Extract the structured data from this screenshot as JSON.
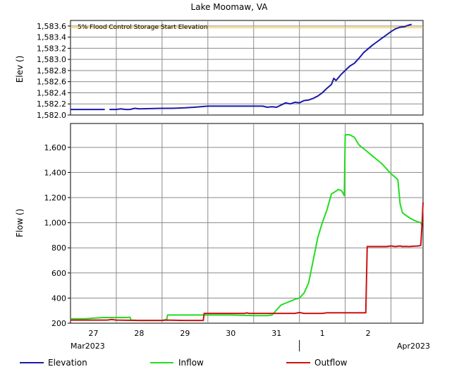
{
  "title": "Lake Moomaw, VA",
  "colors": {
    "elevation": "#1a1aaa",
    "inflow": "#22dd22",
    "outflow": "#cc1111",
    "flood_line": "#ffcc33",
    "grid": "#8a8a8a"
  },
  "chart_data": [
    {
      "type": "line",
      "panel": "elevation",
      "ylabel": "Elev ()",
      "ylim": [
        1582.0,
        1583.7
      ],
      "yticks": [
        {
          "value": 1582.0,
          "label": "1,582.0"
        },
        {
          "value": 1582.2,
          "label": "1,582.2"
        },
        {
          "value": 1582.4,
          "label": "1,582.4"
        },
        {
          "value": 1582.6,
          "label": "1,582.6"
        },
        {
          "value": 1582.8,
          "label": "1,582.8"
        },
        {
          "value": 1583.0,
          "label": "1,583.0"
        },
        {
          "value": 1583.2,
          "label": "1,583.2"
        },
        {
          "value": 1583.4,
          "label": "1,583.4"
        },
        {
          "value": 1583.6,
          "label": "1,583.6"
        }
      ],
      "grid": true,
      "reference_line": {
        "value": 1583.57,
        "label": "5% Flood Control Storage Start Elevation"
      },
      "series": [
        {
          "name": "Elevation",
          "segments": [
            [
              [
                27.0,
                1582.1
              ],
              [
                27.75,
                1582.1
              ]
            ],
            [
              [
                27.85,
                1582.1
              ],
              [
                28.0,
                1582.1
              ],
              [
                28.1,
                1582.11
              ],
              [
                28.2,
                1582.1
              ],
              [
                28.3,
                1582.1
              ],
              [
                28.4,
                1582.12
              ],
              [
                28.5,
                1582.11
              ],
              [
                29.0,
                1582.12
              ],
              [
                29.2,
                1582.12
              ],
              [
                29.5,
                1582.13
              ],
              [
                29.7,
                1582.14
              ],
              [
                30.0,
                1582.16
              ],
              [
                30.5,
                1582.16
              ],
              [
                31.0,
                1582.16
              ],
              [
                31.2,
                1582.16
              ],
              [
                31.3,
                1582.14
              ],
              [
                31.4,
                1582.15
              ],
              [
                31.5,
                1582.14
              ],
              [
                31.6,
                1582.18
              ],
              [
                31.7,
                1582.22
              ],
              [
                31.8,
                1582.2
              ],
              [
                31.9,
                1582.23
              ],
              [
                32.0,
                1582.22
              ],
              [
                32.1,
                1582.26
              ],
              [
                32.2,
                1582.27
              ],
              [
                32.3,
                1582.3
              ],
              [
                32.4,
                1582.34
              ],
              [
                32.5,
                1582.4
              ],
              [
                32.6,
                1582.48
              ],
              [
                32.7,
                1582.55
              ],
              [
                32.75,
                1582.66
              ],
              [
                32.8,
                1582.62
              ],
              [
                32.9,
                1582.72
              ],
              [
                33.0,
                1582.8
              ],
              [
                33.1,
                1582.88
              ],
              [
                33.2,
                1582.93
              ],
              [
                33.3,
                1583.02
              ],
              [
                33.4,
                1583.12
              ],
              [
                33.5,
                1583.19
              ],
              [
                33.6,
                1583.26
              ],
              [
                33.7,
                1583.32
              ],
              [
                33.8,
                1583.38
              ],
              [
                33.9,
                1583.44
              ],
              [
                34.0,
                1583.5
              ],
              [
                34.1,
                1583.55
              ],
              [
                34.2,
                1583.58
              ],
              [
                34.3,
                1583.59
              ],
              [
                34.4,
                1583.62
              ],
              [
                34.45,
                1583.63
              ]
            ]
          ]
        }
      ]
    },
    {
      "type": "line",
      "panel": "flow",
      "ylabel": "Flow ()",
      "ylim": [
        200,
        1790
      ],
      "yticks": [
        {
          "value": 200,
          "label": "200"
        },
        {
          "value": 400,
          "label": "400"
        },
        {
          "value": 600,
          "label": "600"
        },
        {
          "value": 800,
          "label": "800"
        },
        {
          "value": 1000,
          "label": "1,000"
        },
        {
          "value": 1200,
          "label": "1,200"
        },
        {
          "value": 1400,
          "label": "1,400"
        },
        {
          "value": 1600,
          "label": "1,600"
        }
      ],
      "grid": true,
      "x_ticks": [
        "27",
        "28",
        "29",
        "30",
        "31",
        "1",
        "2"
      ],
      "x_month_labels": [
        "Mar2023",
        "Apr2023"
      ],
      "series": [
        {
          "name": "Inflow",
          "points": [
            [
              27.0,
              235
            ],
            [
              27.3,
              235
            ],
            [
              27.5,
              240
            ],
            [
              27.7,
              245
            ],
            [
              28.0,
              245
            ],
            [
              28.25,
              245
            ],
            [
              28.3,
              248
            ],
            [
              28.32,
              225
            ],
            [
              28.5,
              222
            ],
            [
              29.0,
              222
            ],
            [
              29.1,
              230
            ],
            [
              29.12,
              265
            ],
            [
              29.5,
              265
            ],
            [
              30.0,
              265
            ],
            [
              30.5,
              265
            ],
            [
              31.0,
              260
            ],
            [
              31.3,
              260
            ],
            [
              31.4,
              265
            ],
            [
              31.5,
              305
            ],
            [
              31.6,
              345
            ],
            [
              31.7,
              360
            ],
            [
              31.8,
              375
            ],
            [
              31.9,
              390
            ],
            [
              32.0,
              400
            ],
            [
              32.1,
              440
            ],
            [
              32.2,
              520
            ],
            [
              32.3,
              700
            ],
            [
              32.4,
              880
            ],
            [
              32.5,
              1000
            ],
            [
              32.6,
              1100
            ],
            [
              32.7,
              1230
            ],
            [
              32.75,
              1240
            ],
            [
              32.85,
              1265
            ],
            [
              32.92,
              1255
            ],
            [
              32.96,
              1230
            ],
            [
              32.98,
              1215
            ],
            [
              33.0,
              1700
            ],
            [
              33.1,
              1700
            ],
            [
              33.2,
              1680
            ],
            [
              33.3,
              1620
            ],
            [
              33.4,
              1590
            ],
            [
              33.5,
              1560
            ],
            [
              33.6,
              1530
            ],
            [
              33.7,
              1500
            ],
            [
              33.8,
              1470
            ],
            [
              33.9,
              1430
            ],
            [
              34.0,
              1390
            ],
            [
              34.1,
              1360
            ],
            [
              34.15,
              1340
            ],
            [
              34.2,
              1150
            ],
            [
              34.25,
              1080
            ],
            [
              34.3,
              1065
            ],
            [
              34.4,
              1040
            ],
            [
              34.5,
              1020
            ],
            [
              34.6,
              1005
            ],
            [
              34.65,
              1000
            ],
            [
              34.68,
              975
            ]
          ]
        },
        {
          "name": "Outflow",
          "points": [
            [
              27.0,
              225
            ],
            [
              27.5,
              225
            ],
            [
              27.8,
              225
            ],
            [
              27.9,
              230
            ],
            [
              28.0,
              225
            ],
            [
              28.5,
              222
            ],
            [
              29.0,
              222
            ],
            [
              29.1,
              225
            ],
            [
              29.5,
              222
            ],
            [
              29.9,
              222
            ],
            [
              29.92,
              278
            ],
            [
              30.5,
              278
            ],
            [
              30.8,
              278
            ],
            [
              30.85,
              282
            ],
            [
              30.9,
              278
            ],
            [
              31.5,
              278
            ],
            [
              31.9,
              278
            ],
            [
              32.0,
              285
            ],
            [
              32.1,
              278
            ],
            [
              32.5,
              278
            ],
            [
              32.6,
              283
            ],
            [
              33.0,
              283
            ],
            [
              33.4,
              283
            ],
            [
              33.45,
              283
            ],
            [
              33.48,
              810
            ],
            [
              33.8,
              810
            ],
            [
              33.9,
              810
            ],
            [
              34.0,
              815
            ],
            [
              34.1,
              810
            ],
            [
              34.2,
              815
            ],
            [
              34.25,
              810
            ],
            [
              34.3,
              812
            ],
            [
              34.4,
              810
            ],
            [
              34.45,
              812
            ],
            [
              34.6,
              815
            ],
            [
              34.65,
              820
            ],
            [
              34.68,
              1000
            ],
            [
              34.7,
              1160
            ]
          ]
        }
      ]
    }
  ]
}
